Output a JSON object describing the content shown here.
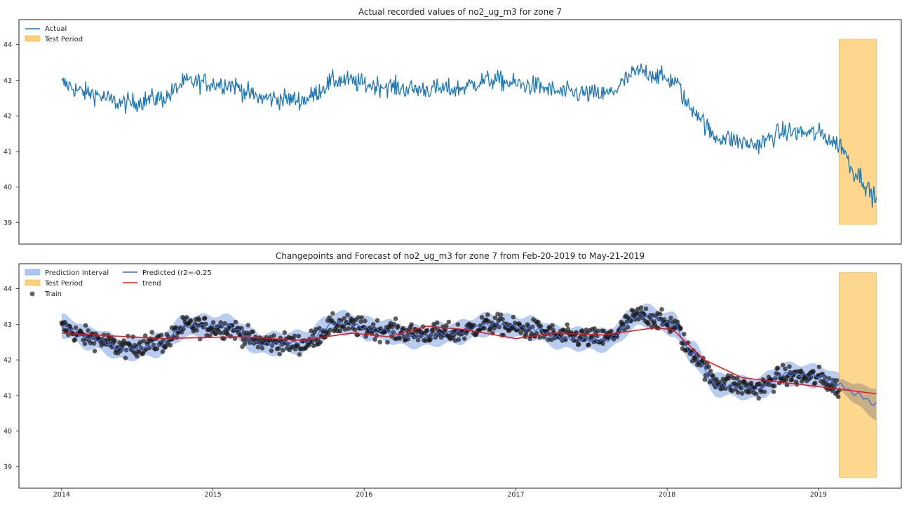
{
  "chart_data": [
    {
      "type": "line",
      "title": "Actual recorded values of no2_ug_m3 for zone 7",
      "xlabel": "",
      "ylabel": "",
      "ylim": [
        38.4,
        44.7
      ],
      "yticks": [
        39,
        40,
        41,
        42,
        43,
        44
      ],
      "grid": false,
      "legend_position": "top-left",
      "legend": [
        "Actual",
        "Test Period"
      ],
      "series": [
        {
          "name": "Actual",
          "color": "#1f77b4",
          "anchors": [
            {
              "date": "2014-01-01",
              "value": 42.9
            },
            {
              "date": "2014-03-01",
              "value": 42.65
            },
            {
              "date": "2014-06-01",
              "value": 42.35
            },
            {
              "date": "2014-09-01",
              "value": 42.5
            },
            {
              "date": "2014-11-01",
              "value": 42.95
            },
            {
              "date": "2015-02-01",
              "value": 42.9
            },
            {
              "date": "2015-05-01",
              "value": 42.5
            },
            {
              "date": "2015-08-01",
              "value": 42.45
            },
            {
              "date": "2015-11-01",
              "value": 43.0
            },
            {
              "date": "2016-02-01",
              "value": 42.85
            },
            {
              "date": "2016-05-01",
              "value": 42.75
            },
            {
              "date": "2016-08-01",
              "value": 42.75
            },
            {
              "date": "2016-11-01",
              "value": 43.0
            },
            {
              "date": "2017-02-01",
              "value": 42.85
            },
            {
              "date": "2017-05-01",
              "value": 42.65
            },
            {
              "date": "2017-08-01",
              "value": 42.6
            },
            {
              "date": "2017-11-01",
              "value": 43.25
            },
            {
              "date": "2018-01-15",
              "value": 43.0
            },
            {
              "date": "2018-03-01",
              "value": 42.2
            },
            {
              "date": "2018-05-01",
              "value": 41.4
            },
            {
              "date": "2018-08-01",
              "value": 41.2
            },
            {
              "date": "2018-10-15",
              "value": 41.55
            },
            {
              "date": "2019-01-01",
              "value": 41.5
            },
            {
              "date": "2019-02-20",
              "value": 41.2
            },
            {
              "date": "2019-04-01",
              "value": 40.4
            },
            {
              "date": "2019-05-21",
              "value": 39.7
            }
          ],
          "noise_amplitude": 0.5,
          "date_range": [
            "2014-01-01",
            "2019-05-21"
          ]
        }
      ],
      "shaded_regions": [
        {
          "name": "Test Period",
          "x": [
            "2019-02-20",
            "2019-05-21"
          ],
          "y": [
            38.95,
            44.15
          ],
          "color": "#fdd07a"
        }
      ]
    },
    {
      "type": "scatter",
      "title": "Changepoints and Forecast of no2_ug_m3 for zone 7 from Feb-20-2019 to May-21-2019",
      "xlabel": "",
      "ylabel": "",
      "ylim": [
        38.4,
        44.7
      ],
      "yticks": [
        39,
        40,
        41,
        42,
        43,
        44
      ],
      "xlim": [
        "2013-09-20",
        "2019-07-20"
      ],
      "xticks": [
        "2014",
        "2015",
        "2016",
        "2017",
        "2018",
        "2019"
      ],
      "grid": false,
      "legend_position": "top-left",
      "legend": [
        "Prediction Interval",
        "Test Period",
        "Train",
        "Predicted (r2=-0.25",
        "trend"
      ],
      "series": [
        {
          "name": "Train",
          "kind": "scatter",
          "color": "#1a1a1a",
          "note_source": "same points as Actual series through 2019-02-20"
        },
        {
          "name": "Predicted (r2=-0.25",
          "kind": "line",
          "color": "#4169e1",
          "anchors": [
            {
              "date": "2014-01-01",
              "value": 42.95
            },
            {
              "date": "2014-03-15",
              "value": 42.6
            },
            {
              "date": "2014-06-01",
              "value": 42.3
            },
            {
              "date": "2014-08-15",
              "value": 42.4
            },
            {
              "date": "2014-11-01",
              "value": 42.95
            },
            {
              "date": "2015-02-01",
              "value": 42.95
            },
            {
              "date": "2015-05-01",
              "value": 42.45
            },
            {
              "date": "2015-08-01",
              "value": 42.5
            },
            {
              "date": "2015-11-01",
              "value": 43.05
            },
            {
              "date": "2016-02-01",
              "value": 42.85
            },
            {
              "date": "2016-05-01",
              "value": 42.65
            },
            {
              "date": "2016-08-01",
              "value": 42.75
            },
            {
              "date": "2016-11-01",
              "value": 43.0
            },
            {
              "date": "2017-02-01",
              "value": 42.9
            },
            {
              "date": "2017-05-01",
              "value": 42.6
            },
            {
              "date": "2017-08-01",
              "value": 42.55
            },
            {
              "date": "2017-11-01",
              "value": 43.25
            },
            {
              "date": "2018-01-15",
              "value": 43.0
            },
            {
              "date": "2018-03-01",
              "value": 42.2
            },
            {
              "date": "2018-05-01",
              "value": 41.3
            },
            {
              "date": "2018-08-01",
              "value": 41.2
            },
            {
              "date": "2018-10-15",
              "value": 41.6
            },
            {
              "date": "2019-01-01",
              "value": 41.55
            },
            {
              "date": "2019-02-20",
              "value": 41.3
            },
            {
              "date": "2019-04-01",
              "value": 41.05
            },
            {
              "date": "2019-05-21",
              "value": 40.75
            }
          ],
          "interval_halfwidth": 0.3,
          "forecast_interval_halfwidth": [
            0.15,
            0.45
          ]
        },
        {
          "name": "trend",
          "kind": "line",
          "color": "#e8151b",
          "points": [
            {
              "date": "2014-01-01",
              "value": 42.75
            },
            {
              "date": "2014-09-01",
              "value": 42.6
            },
            {
              "date": "2015-03-01",
              "value": 42.65
            },
            {
              "date": "2015-08-01",
              "value": 42.55
            },
            {
              "date": "2015-12-01",
              "value": 42.75
            },
            {
              "date": "2016-03-01",
              "value": 42.65
            },
            {
              "date": "2016-06-01",
              "value": 42.95
            },
            {
              "date": "2016-09-01",
              "value": 42.85
            },
            {
              "date": "2017-01-01",
              "value": 42.6
            },
            {
              "date": "2017-04-01",
              "value": 42.75
            },
            {
              "date": "2017-08-01",
              "value": 42.7
            },
            {
              "date": "2017-12-01",
              "value": 42.9
            },
            {
              "date": "2018-01-15",
              "value": 42.85
            },
            {
              "date": "2018-04-01",
              "value": 42.0
            },
            {
              "date": "2018-07-01",
              "value": 41.5
            },
            {
              "date": "2019-01-01",
              "value": 41.25
            },
            {
              "date": "2019-05-21",
              "value": 41.05
            }
          ]
        }
      ],
      "shaded_regions": [
        {
          "name": "Test Period",
          "x": [
            "2019-02-20",
            "2019-05-21"
          ],
          "y": [
            38.7,
            44.45
          ],
          "color": "#fdd07a"
        }
      ]
    }
  ]
}
